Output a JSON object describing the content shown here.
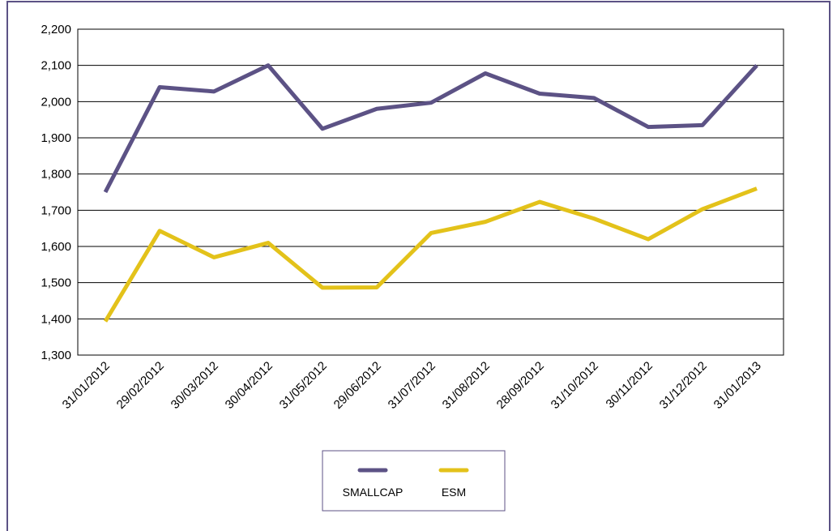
{
  "chart_data": {
    "type": "line",
    "categories": [
      "31/01/2012",
      "29/02/2012",
      "30/03/2012",
      "30/04/2012",
      "31/05/2012",
      "29/06/2012",
      "31/07/2012",
      "31/08/2012",
      "28/09/2012",
      "31/10/2012",
      "30/11/2012",
      "31/12/2012",
      "31/01/2013"
    ],
    "series": [
      {
        "name": "SMALLCAP",
        "color": "#5c5285",
        "values": [
          1750,
          2040,
          2028,
          2100,
          1925,
          1980,
          1997,
          2078,
          2022,
          2010,
          1930,
          1935,
          2100
        ]
      },
      {
        "name": "ESM",
        "color": "#e3c21a",
        "values": [
          1393,
          1643,
          1570,
          1610,
          1486,
          1487,
          1637,
          1668,
          1723,
          1677,
          1620,
          1703,
          1760
        ]
      }
    ],
    "ylim": [
      1300,
      2200
    ],
    "yticks": [
      {
        "value": 1300,
        "label": "1,300"
      },
      {
        "value": 1400,
        "label": "1,400"
      },
      {
        "value": 1500,
        "label": "1,500"
      },
      {
        "value": 1600,
        "label": "1,600"
      },
      {
        "value": 1700,
        "label": "1,700"
      },
      {
        "value": 1800,
        "label": "1,800"
      },
      {
        "value": 1900,
        "label": "1,900"
      },
      {
        "value": 2000,
        "label": "2,000"
      },
      {
        "value": 2100,
        "label": "2,100"
      },
      {
        "value": 2200,
        "label": "2,200"
      }
    ],
    "grid": true,
    "legend": "bottom"
  }
}
